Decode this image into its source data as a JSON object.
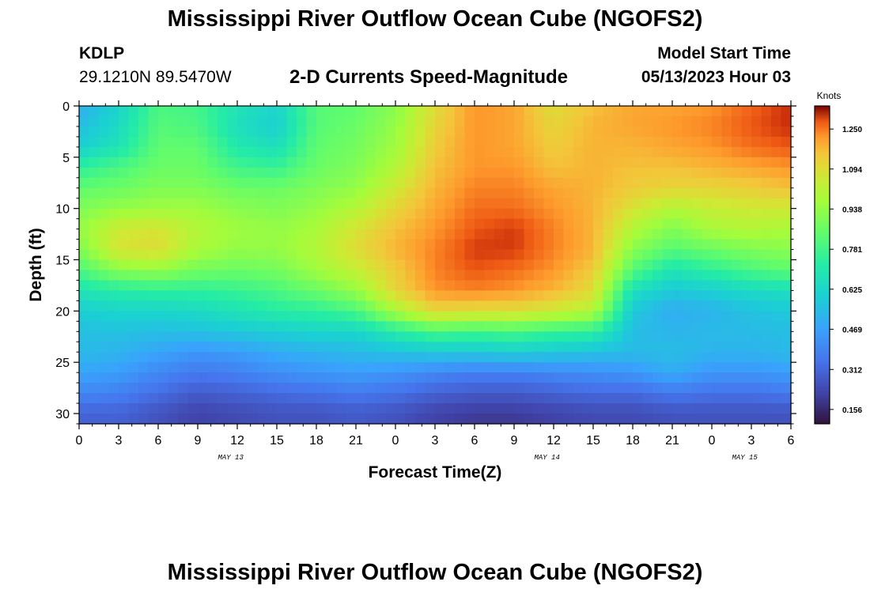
{
  "header": {
    "title": "Mississippi River Outflow Ocean Cube (NGOFS2)",
    "station": "KDLP",
    "coordinates": "29.1210N  89.5470W",
    "subtitle": "2-D Currents Speed-Magnitude",
    "model_start_label": "Model Start Time",
    "model_start_value": "05/13/2023 Hour 03"
  },
  "footer": {
    "title": "Mississippi River Outflow Ocean Cube (NGOFS2)"
  },
  "chart_data": {
    "type": "heatmap",
    "xlabel": "Forecast Time(Z)",
    "ylabel": "Depth (ft)",
    "x_range_hours": [
      0,
      54
    ],
    "x_tick_labels": [
      "0",
      "3",
      "6",
      "9",
      "12",
      "15",
      "18",
      "21",
      "0",
      "3",
      "6",
      "9",
      "12",
      "15",
      "18",
      "21",
      "0",
      "3",
      "6"
    ],
    "date_labels": [
      {
        "text": "MAY 13",
        "hour": 11.5
      },
      {
        "text": "MAY 14",
        "hour": 35.5
      },
      {
        "text": "MAY 15",
        "hour": 50.5
      }
    ],
    "y_range_ft": [
      0,
      31
    ],
    "y_ticks": [
      0,
      5,
      10,
      15,
      20,
      25,
      30
    ],
    "colorbar": {
      "label": "Knots",
      "range": [
        0.1,
        1.34
      ],
      "ticks": [
        "0.156",
        "0.312",
        "0.469",
        "0.625",
        "0.781",
        "0.938",
        "1.094",
        "1.250"
      ]
    },
    "depth_levels_ft": [
      0,
      2,
      4,
      6,
      8,
      10,
      12,
      14,
      16,
      18,
      20,
      22,
      24,
      26,
      28,
      30
    ],
    "time_hours": [
      0,
      3,
      6,
      9,
      12,
      15,
      18,
      21,
      24,
      27,
      30,
      33,
      36,
      39,
      42,
      45,
      48,
      51,
      54
    ],
    "speed_knots": [
      [
        0.5,
        0.62,
        0.8,
        0.78,
        0.68,
        0.62,
        0.82,
        0.84,
        0.92,
        1.1,
        1.22,
        1.2,
        1.1,
        1.16,
        1.2,
        1.2,
        1.22,
        1.27,
        1.31
      ],
      [
        0.55,
        0.64,
        0.82,
        0.8,
        0.66,
        0.6,
        0.82,
        0.86,
        0.94,
        1.12,
        1.22,
        1.2,
        1.12,
        1.18,
        1.2,
        1.22,
        1.24,
        1.28,
        1.31
      ],
      [
        0.6,
        0.68,
        0.84,
        0.84,
        0.7,
        0.66,
        0.84,
        0.88,
        0.96,
        1.14,
        1.22,
        1.2,
        1.14,
        1.18,
        1.18,
        1.2,
        1.22,
        1.26,
        1.28
      ],
      [
        0.74,
        0.8,
        0.86,
        0.86,
        0.78,
        0.76,
        0.86,
        0.9,
        1.0,
        1.16,
        1.22,
        1.22,
        1.16,
        1.18,
        1.16,
        1.16,
        1.18,
        1.2,
        1.22
      ],
      [
        0.84,
        0.86,
        0.9,
        0.9,
        0.86,
        0.86,
        0.9,
        0.94,
        1.06,
        1.18,
        1.24,
        1.24,
        1.2,
        1.18,
        1.14,
        1.12,
        1.12,
        1.14,
        1.16
      ],
      [
        0.9,
        0.94,
        0.96,
        0.96,
        0.92,
        0.9,
        0.94,
        1.0,
        1.12,
        1.2,
        1.26,
        1.26,
        1.22,
        1.18,
        1.08,
        1.0,
        1.04,
        1.06,
        1.06
      ],
      [
        0.94,
        1.06,
        1.08,
        1.0,
        0.96,
        0.94,
        0.98,
        1.08,
        1.16,
        1.22,
        1.28,
        1.3,
        1.24,
        1.18,
        1.0,
        0.9,
        0.98,
        1.0,
        0.98
      ],
      [
        0.9,
        1.08,
        1.1,
        0.98,
        0.94,
        0.94,
        1.0,
        1.1,
        1.18,
        1.24,
        1.3,
        1.3,
        1.24,
        1.18,
        0.92,
        0.82,
        0.86,
        0.9,
        0.92
      ],
      [
        0.8,
        0.92,
        0.94,
        0.88,
        0.86,
        0.88,
        0.96,
        1.04,
        1.14,
        1.24,
        1.28,
        1.26,
        1.22,
        1.14,
        0.82,
        0.68,
        0.74,
        0.8,
        0.84
      ],
      [
        0.68,
        0.72,
        0.74,
        0.74,
        0.76,
        0.8,
        0.86,
        0.94,
        1.12,
        1.22,
        1.24,
        1.22,
        1.18,
        1.1,
        0.66,
        0.58,
        0.6,
        0.64,
        0.66
      ],
      [
        0.6,
        0.62,
        0.62,
        0.64,
        0.68,
        0.72,
        0.74,
        0.8,
        0.98,
        1.12,
        1.1,
        1.1,
        1.06,
        1.0,
        0.58,
        0.5,
        0.52,
        0.56,
        0.58
      ],
      [
        0.55,
        0.56,
        0.55,
        0.56,
        0.58,
        0.6,
        0.62,
        0.62,
        0.72,
        0.8,
        0.78,
        0.8,
        0.76,
        0.74,
        0.55,
        0.52,
        0.54,
        0.54,
        0.55
      ],
      [
        0.54,
        0.52,
        0.48,
        0.44,
        0.46,
        0.5,
        0.52,
        0.54,
        0.56,
        0.58,
        0.58,
        0.6,
        0.58,
        0.56,
        0.54,
        0.55,
        0.52,
        0.52,
        0.54
      ],
      [
        0.48,
        0.46,
        0.4,
        0.36,
        0.38,
        0.42,
        0.44,
        0.46,
        0.44,
        0.4,
        0.38,
        0.38,
        0.4,
        0.42,
        0.44,
        0.5,
        0.44,
        0.44,
        0.46
      ],
      [
        0.4,
        0.38,
        0.33,
        0.28,
        0.3,
        0.32,
        0.34,
        0.36,
        0.34,
        0.3,
        0.28,
        0.28,
        0.3,
        0.32,
        0.32,
        0.36,
        0.34,
        0.34,
        0.36
      ],
      [
        0.3,
        0.3,
        0.26,
        0.22,
        0.24,
        0.26,
        0.26,
        0.28,
        0.26,
        0.22,
        0.2,
        0.2,
        0.22,
        0.24,
        0.24,
        0.26,
        0.26,
        0.26,
        0.26
      ]
    ]
  }
}
